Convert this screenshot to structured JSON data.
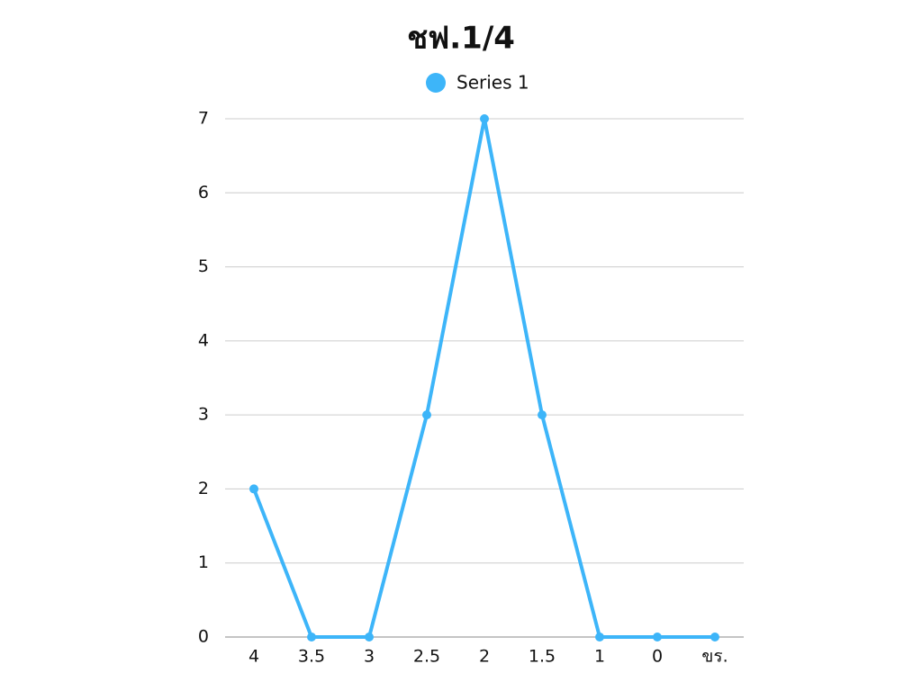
{
  "chart_data": {
    "type": "line",
    "title": "ชฟ.1/4",
    "categories": [
      "4",
      "3.5",
      "3",
      "2.5",
      "2",
      "1.5",
      "1",
      "0",
      "ขร."
    ],
    "series": [
      {
        "name": "Series 1",
        "color": "#3db5f9",
        "values": [
          2,
          0,
          0,
          3,
          7,
          3,
          0,
          0,
          0
        ]
      }
    ],
    "ylim": [
      0,
      7
    ],
    "yticks": [
      0,
      1,
      2,
      3,
      4,
      5,
      6,
      7
    ],
    "grid": true,
    "legend": "top"
  }
}
